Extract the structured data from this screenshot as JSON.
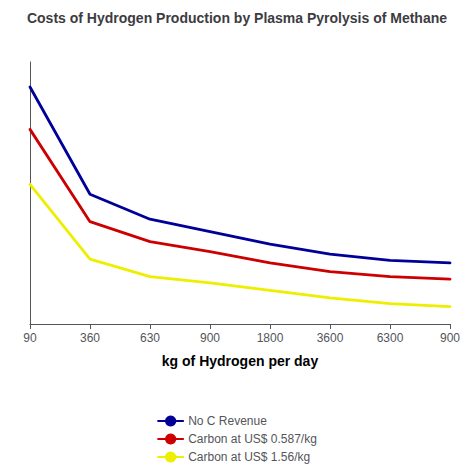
{
  "chart_data": {
    "type": "line",
    "title": "Costs of Hydrogen Production by Plasma Pyrolysis of Methane",
    "xlabel": "kg of Hydrogen per day",
    "categories": [
      "90",
      "360",
      "630",
      "900",
      "1800",
      "3600",
      "6300",
      "900"
    ],
    "series": [
      {
        "name": "No C Revenue",
        "color": "#000099",
        "values": [
          9.5,
          5.2,
          4.2,
          3.7,
          3.2,
          2.8,
          2.55,
          2.45
        ]
      },
      {
        "name": "Carbon at US$ 0.587/kg",
        "color": "#CC0000",
        "values": [
          7.8,
          4.1,
          3.3,
          2.9,
          2.45,
          2.1,
          1.9,
          1.8
        ]
      },
      {
        "name": "Carbon at US$ 1.56/kg",
        "color": "#EEEE00",
        "values": [
          5.6,
          2.6,
          1.9,
          1.65,
          1.35,
          1.05,
          0.82,
          0.7
        ]
      }
    ],
    "ylim": [
      0,
      10.5
    ],
    "tick_labels": "x",
    "grid": false,
    "legend": "bottom"
  }
}
